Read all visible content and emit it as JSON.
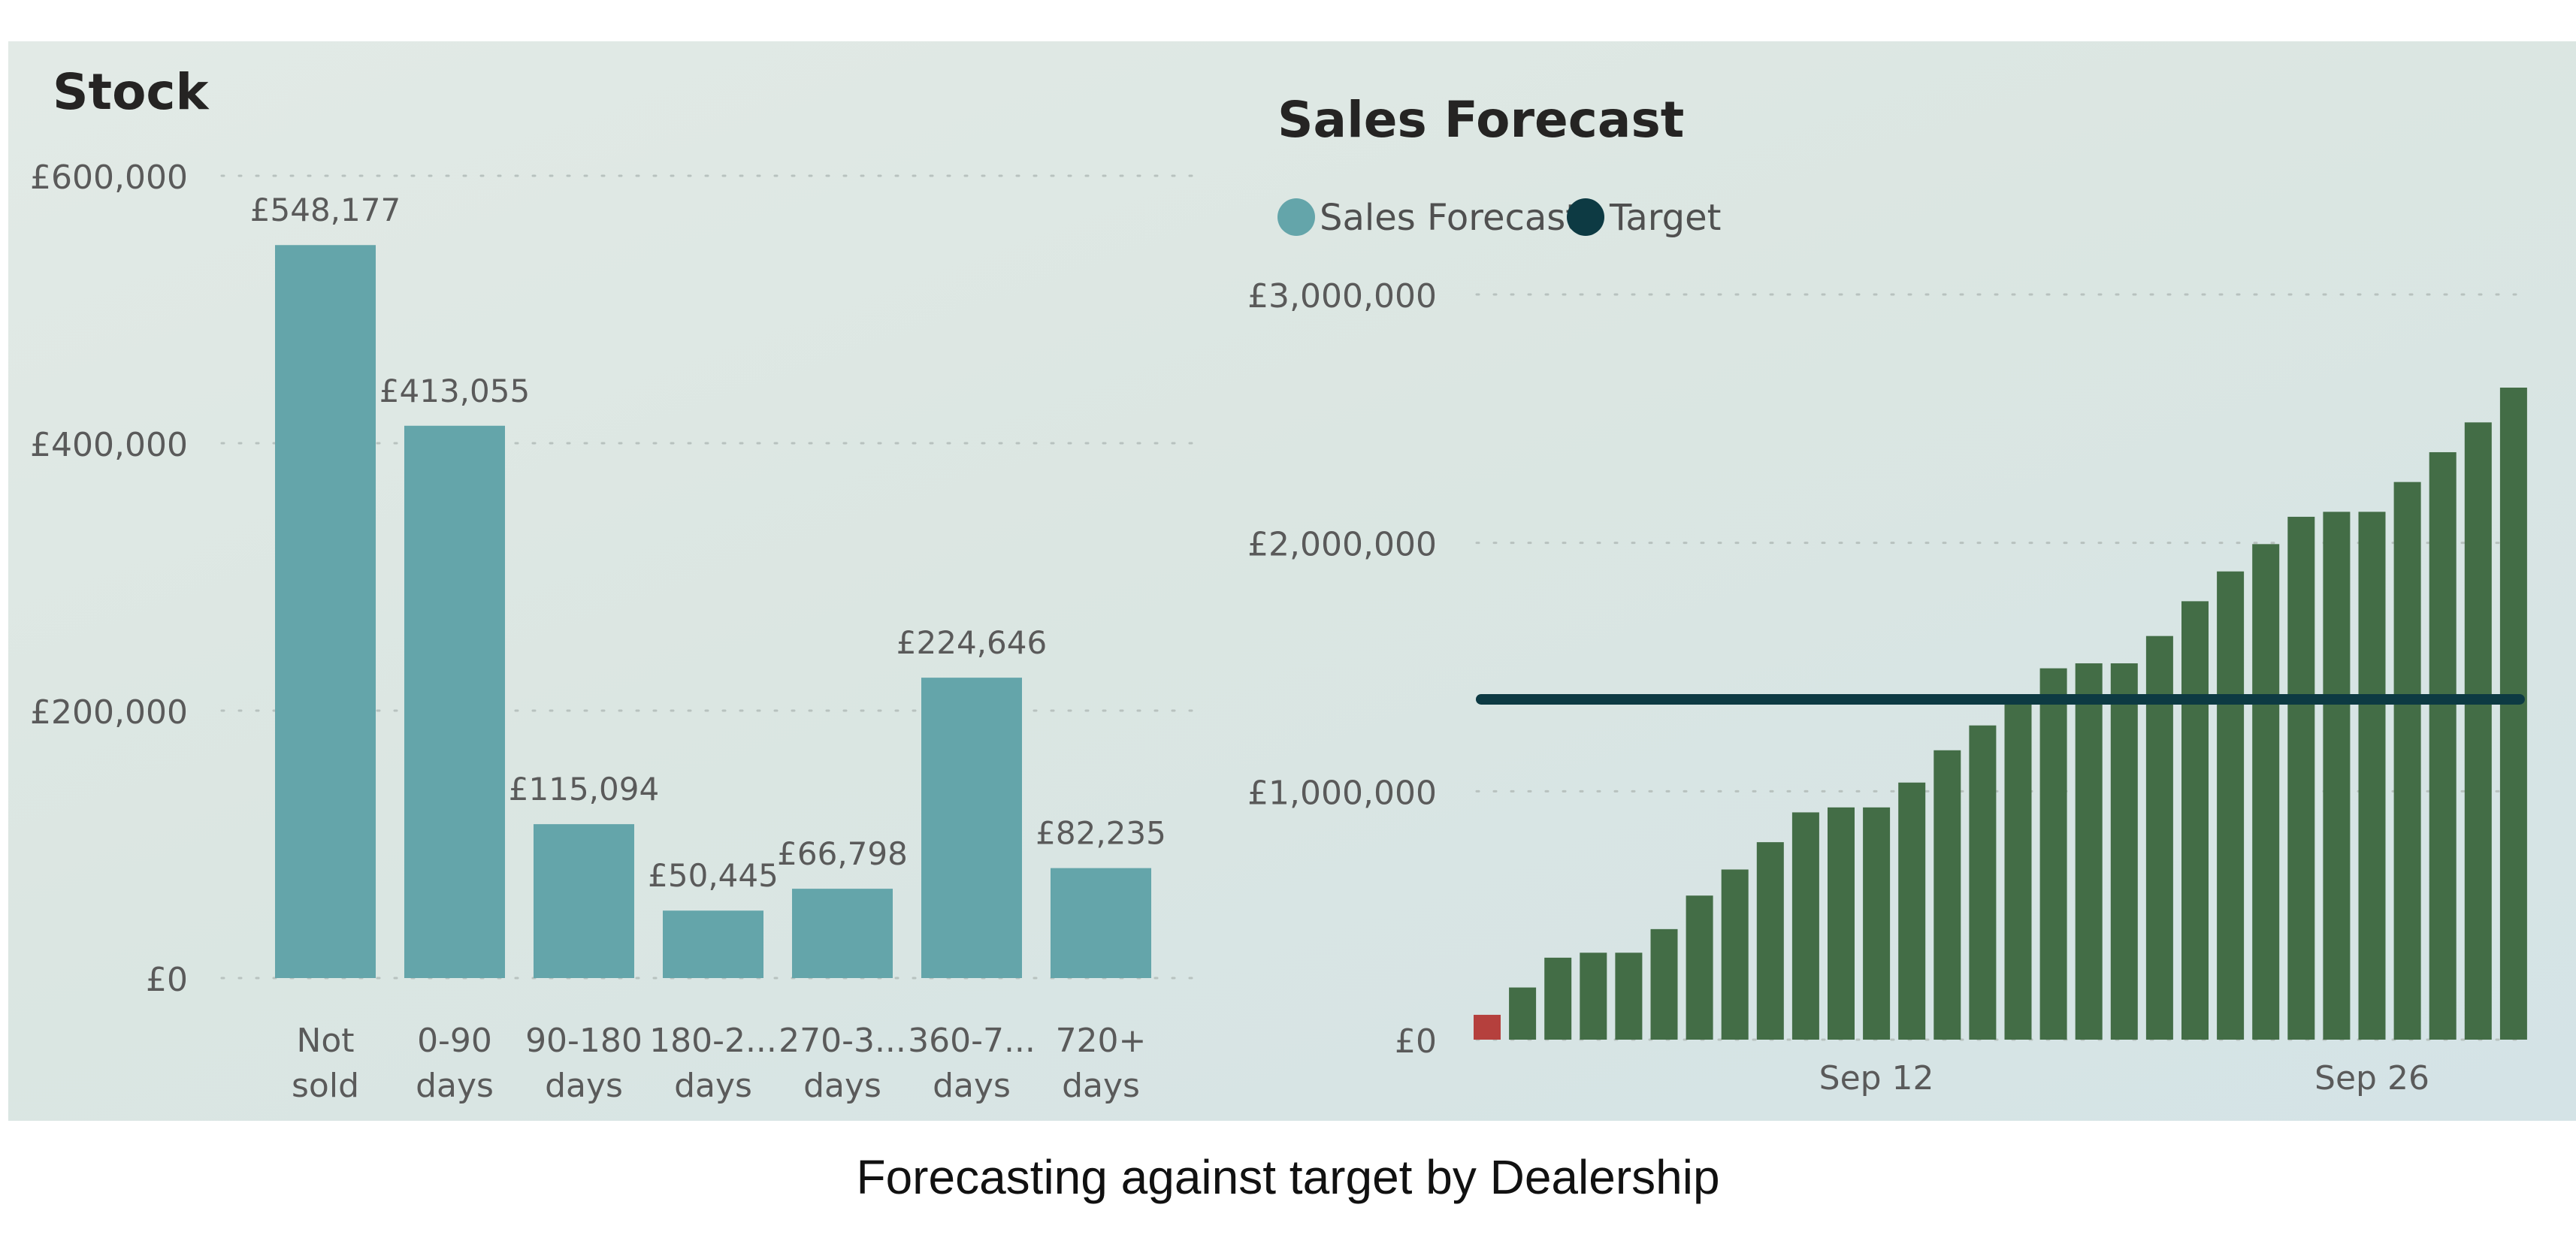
{
  "colors": {
    "stock_bar": "#64a5aa",
    "forecast_bar": "#436d46",
    "forecast_first_bar": "#b5403d",
    "target_line": "#0d3a43",
    "legend_forecast": "#64a5aa",
    "legend_target": "#0d3a43",
    "grid": "#b8c2bf",
    "title_text": "#252423",
    "axis_text": "#5a5a5a"
  },
  "footer_caption": "Forecasting against target by Dealership",
  "chart_data": [
    {
      "type": "bar",
      "title": "Stock",
      "categories": [
        [
          "Not",
          "sold"
        ],
        [
          "0-90",
          "days"
        ],
        [
          "90-180",
          "days"
        ],
        [
          "180-2...",
          "days"
        ],
        [
          "270-3...",
          "days"
        ],
        [
          "360-7...",
          "days"
        ],
        [
          "720+",
          "days"
        ]
      ],
      "values": [
        548177,
        413055,
        115094,
        50445,
        66798,
        224646,
        82235
      ],
      "data_labels": [
        "£548,177",
        "£413,055",
        "£115,094",
        "£50,445",
        "£66,798",
        "£224,646",
        "£82,235"
      ],
      "ylim": [
        0,
        600000
      ],
      "yticks": [
        {
          "value": 600000,
          "label": "£600,000"
        },
        {
          "value": 400000,
          "label": "£400,000"
        },
        {
          "value": 200000,
          "label": "£200,000"
        },
        {
          "value": 0,
          "label": "£0"
        }
      ],
      "grid": true
    },
    {
      "type": "bar",
      "title": "Sales Forecast",
      "legend": [
        {
          "name": "Sales Forecast",
          "color": "#64a5aa"
        },
        {
          "name": "Target",
          "color": "#0d3a43"
        }
      ],
      "legend_position": "top-left",
      "x": [
        "2024-09-01",
        "2024-09-02",
        "2024-09-03",
        "2024-09-04",
        "2024-09-05",
        "2024-09-06",
        "2024-09-07",
        "2024-09-08",
        "2024-09-09",
        "2024-09-10",
        "2024-09-11",
        "2024-09-12",
        "2024-09-13",
        "2024-09-14",
        "2024-09-15",
        "2024-09-16",
        "2024-09-17",
        "2024-09-18",
        "2024-09-19",
        "2024-09-20",
        "2024-09-21",
        "2024-09-22",
        "2024-09-23",
        "2024-09-24",
        "2024-09-25",
        "2024-09-26",
        "2024-09-27",
        "2024-09-28",
        "2024-09-29",
        "2024-09-30"
      ],
      "series": [
        {
          "name": "Sales Forecast",
          "values": [
            100000,
            210000,
            330000,
            350000,
            350000,
            445000,
            580000,
            685000,
            795000,
            915000,
            935000,
            935000,
            1035000,
            1165000,
            1265000,
            1365000,
            1495000,
            1515000,
            1515000,
            1625000,
            1765000,
            1885000,
            1995000,
            2105000,
            2125000,
            2125000,
            2245000,
            2365000,
            2485000,
            2625000
          ]
        },
        {
          "name": "Target",
          "values": [
            1370000,
            1370000,
            1370000,
            1370000,
            1370000,
            1370000,
            1370000,
            1370000,
            1370000,
            1370000,
            1370000,
            1370000,
            1370000,
            1370000,
            1370000,
            1370000,
            1370000,
            1370000,
            1370000,
            1370000,
            1370000,
            1370000,
            1370000,
            1370000,
            1370000,
            1370000,
            1370000,
            1370000,
            1370000,
            1370000
          ]
        }
      ],
      "xticks": [
        {
          "x": "2024-09-12",
          "label": "Sep 12"
        },
        {
          "x": "2024-09-26",
          "label": "Sep 26"
        }
      ],
      "ylim": [
        0,
        3000000
      ],
      "yticks": [
        {
          "value": 3000000,
          "label": "£3,000,000"
        },
        {
          "value": 2000000,
          "label": "£2,000,000"
        },
        {
          "value": 1000000,
          "label": "£1,000,000"
        },
        {
          "value": 0,
          "label": "£0"
        }
      ],
      "grid": true
    }
  ]
}
